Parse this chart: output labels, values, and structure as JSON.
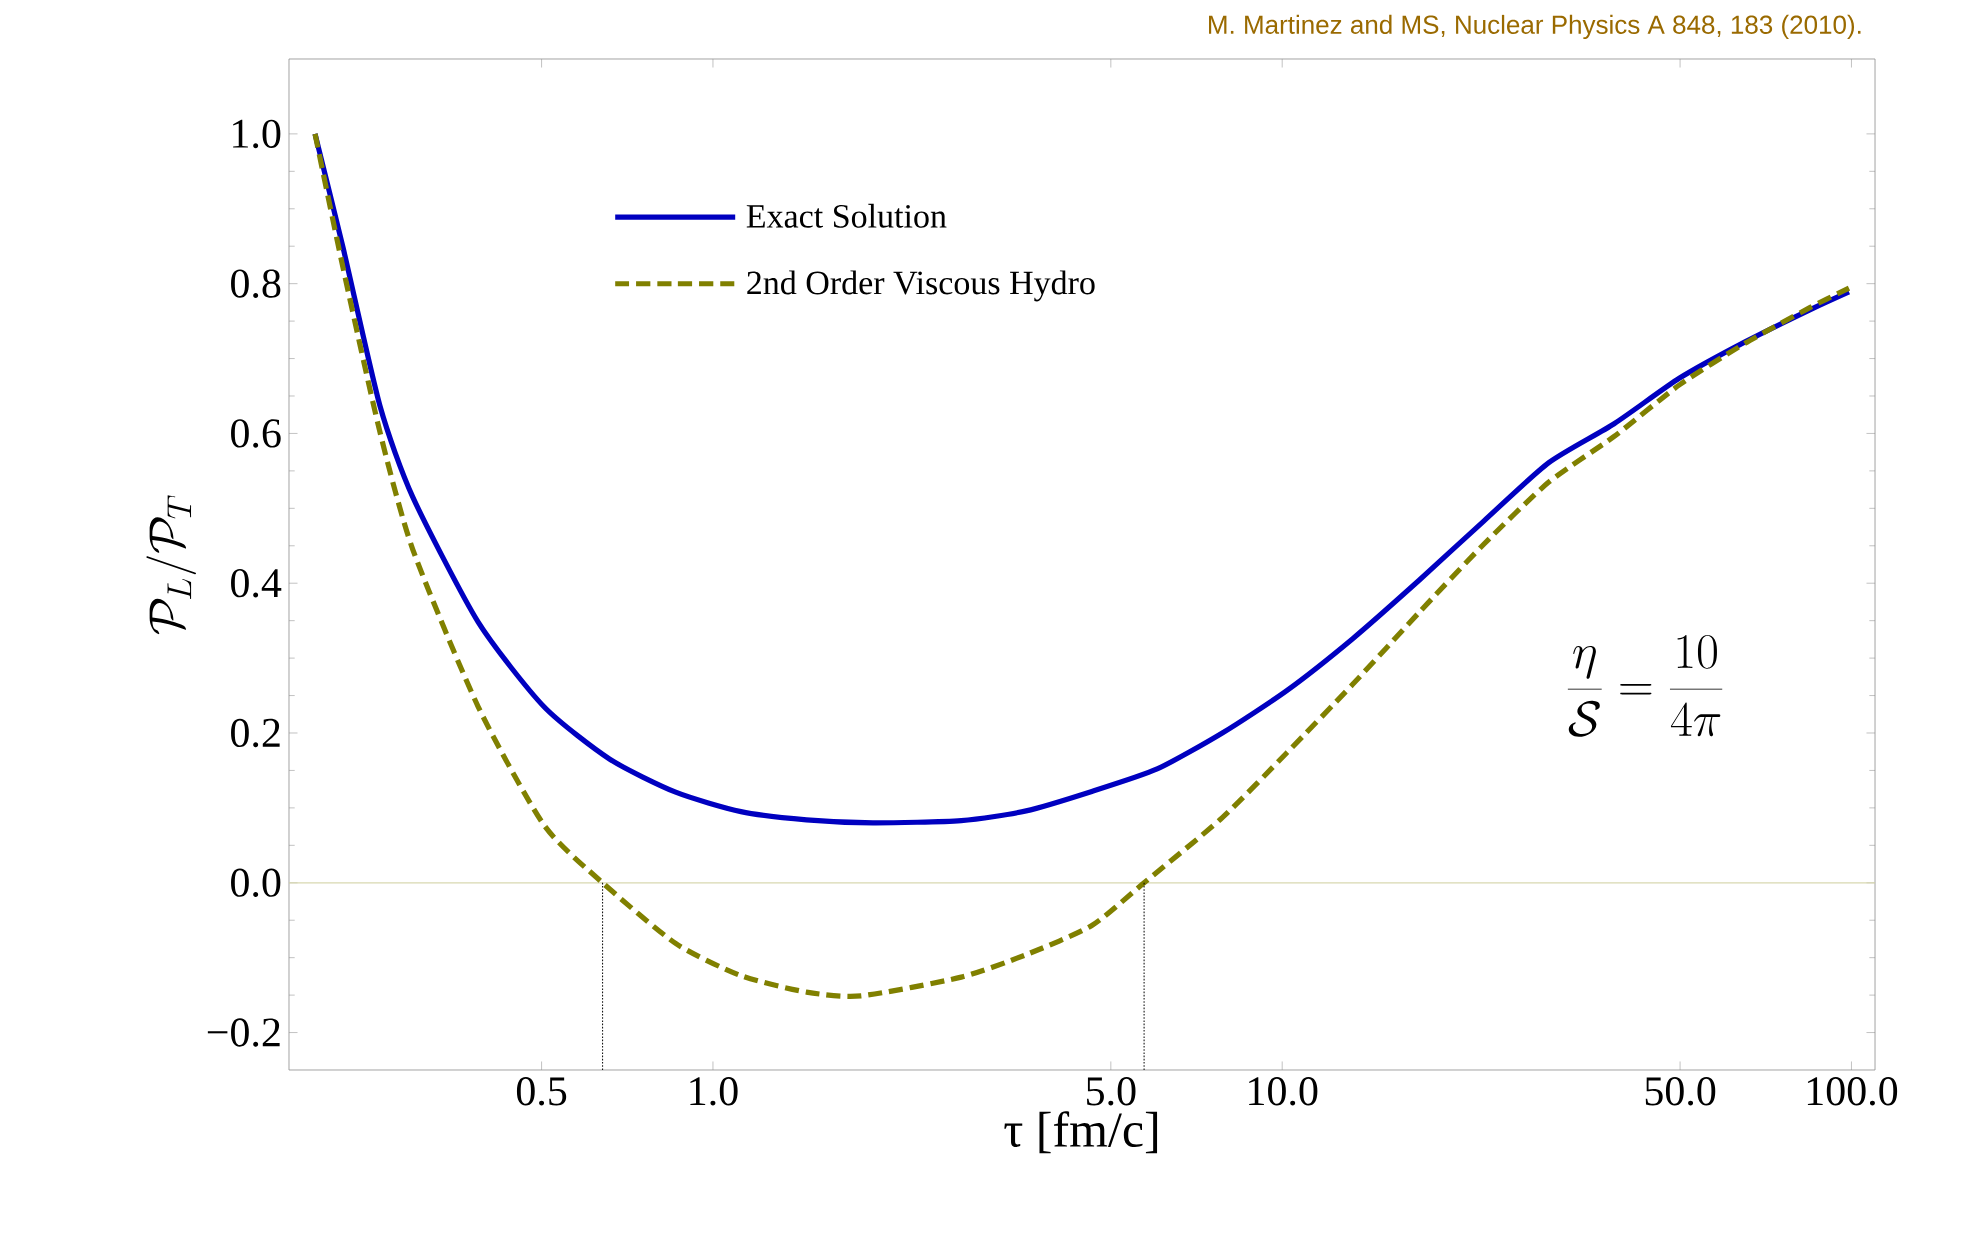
{
  "chart_data": {
    "type": "line",
    "xlabel": "τ [fm/c]",
    "ylabel": "\\mathcal{P}_L/\\mathcal{P}_T",
    "log": "x",
    "xlim": [
      0.18,
      110
    ],
    "ylim": [
      -0.25,
      1.1
    ],
    "xticks": [
      {
        "value": 0.5,
        "label": "0.5"
      },
      {
        "value": 1,
        "label": "1.0"
      },
      {
        "value": 5,
        "label": "5.0"
      },
      {
        "value": 10,
        "label": "10.0"
      },
      {
        "value": 50,
        "label": "50.0"
      },
      {
        "value": 100,
        "label": "100.0"
      }
    ],
    "yticks": [
      {
        "value": -0.2,
        "label": "−0.2"
      },
      {
        "value": 0,
        "label": "0.0"
      },
      {
        "value": 0.2,
        "label": "0.2"
      },
      {
        "value": 0.4,
        "label": "0.4"
      },
      {
        "value": 0.6,
        "label": "0.6"
      },
      {
        "value": 0.8,
        "label": "0.8"
      },
      {
        "value": 1,
        "label": "1.0"
      }
    ],
    "legend": "top left",
    "marker": "none",
    "series": [
      {
        "name": "Exact Solution",
        "color": "#0000c0",
        "line_style": "solid",
        "x": [
          0.2,
          0.224,
          0.26,
          0.297,
          0.387,
          0.505,
          0.659,
          0.86,
          1.12,
          1.46,
          1.91,
          2.73,
          3.55,
          4.63,
          6.03,
          7.85,
          10.2,
          13.3,
          17.4,
          22.6,
          29.4,
          38.3,
          49.9,
          64.9,
          84.5,
          99
        ],
        "values": [
          1.0,
          0.848,
          0.637,
          0.515,
          0.348,
          0.235,
          0.165,
          0.121,
          0.095,
          0.084,
          0.08,
          0.083,
          0.096,
          0.122,
          0.152,
          0.2,
          0.257,
          0.326,
          0.404,
          0.483,
          0.561,
          0.613,
          0.674,
          0.722,
          0.765,
          0.789
        ]
      },
      {
        "name": "2nd Order Viscous Hydro",
        "color": "#808000",
        "line_style": "dashed",
        "x": [
          0.2,
          0.224,
          0.26,
          0.297,
          0.387,
          0.505,
          0.64,
          0.86,
          1.12,
          1.46,
          1.82,
          2.73,
          3.55,
          4.63,
          5.72,
          7.85,
          10.2,
          13.3,
          17.4,
          22.6,
          29.4,
          38.3,
          49.9,
          64.9,
          84.5,
          99
        ],
        "values": [
          1.0,
          0.821,
          0.602,
          0.445,
          0.235,
          0.077,
          0.0,
          -0.081,
          -0.124,
          -0.146,
          -0.151,
          -0.126,
          -0.096,
          -0.057,
          0.0,
          0.087,
          0.174,
          0.265,
          0.361,
          0.452,
          0.535,
          0.596,
          0.665,
          0.72,
          0.768,
          0.794
        ]
      },
      {
        "color": "#000000",
        "line_style": "dotted",
        "x": [
          0.64,
          0.64
        ],
        "values": [
          -0.25,
          0.0
        ]
      },
      {
        "color": "#000000",
        "line_style": "dotted",
        "x": [
          5.72,
          5.72
        ],
        "values": [
          -0.25,
          0.0
        ]
      }
    ],
    "ref_lines": [
      {
        "axis": "y",
        "value": 0,
        "color": "#d8d8b0"
      }
    ],
    "annotations": [
      "M. Martinez and MS, Nuclear Physics A 848, 183 (2010).",
      "\\frac{\\eta}{\\mathcal{S}}=\\frac{10}{4\\pi}"
    ]
  }
}
